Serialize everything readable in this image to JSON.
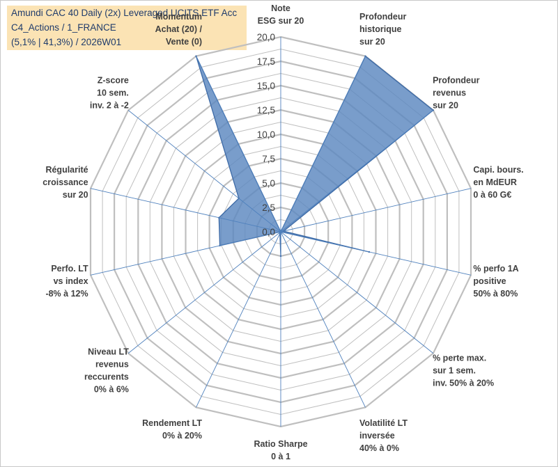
{
  "title": {
    "line1": "Amundi CAC 40 Daily (2x) Leveraged UCITS ETF Acc",
    "line2": "C4_Actions / 1_FRANCE",
    "line3": "(5,1% | 41,3%) / 2026W01"
  },
  "chart_data": {
    "type": "radar",
    "rmax": 20,
    "ticks": [
      0,
      2.5,
      5,
      7.5,
      10,
      12.5,
      15,
      17.5,
      20
    ],
    "tick_labels": [
      "0,0",
      "2,5",
      "5,0",
      "7,5",
      "10,0",
      "12,5",
      "15,0",
      "17,5",
      "20,0"
    ],
    "axes": [
      {
        "label": [
          "Note",
          "ESG sur 20"
        ],
        "value": 0
      },
      {
        "label": [
          "Profondeur",
          "historique",
          "sur 20"
        ],
        "value": 20
      },
      {
        "label": [
          "Profondeur",
          "revenus",
          "sur 20"
        ],
        "value": 20
      },
      {
        "label": [
          "Capi. bours.",
          "en MdEUR",
          "0 à 60 G€"
        ],
        "value": 0.3
      },
      {
        "label": [
          "% perfo 1A",
          "positive",
          "50% à 80%"
        ],
        "value": 9.3
      },
      {
        "label": [
          "% perte max.",
          "sur 1 sem.",
          "inv. 50% à 20%"
        ],
        "value": 0
      },
      {
        "label": [
          "Volatilité LT",
          "inversée",
          "40% à 0%"
        ],
        "value": 0
      },
      {
        "label": [
          "Ratio Sharpe",
          "0 à 1"
        ],
        "value": 2.5
      },
      {
        "label": [
          "Rendement LT",
          "0% à 20%"
        ],
        "value": 0.2
      },
      {
        "label": [
          "Niveau LT",
          "revenus",
          "reccurents",
          "0% à 6%"
        ],
        "value": 0
      },
      {
        "label": [
          "Perfo. LT",
          "vs index",
          "-8% à 12%"
        ],
        "value": 6.4
      },
      {
        "label": [
          "Régularité",
          "croissance",
          "sur 20"
        ],
        "value": 6.5
      },
      {
        "label": [
          "Z-score",
          "10 sem.",
          "inv. 2 à -2"
        ],
        "value": 5.5
      },
      {
        "label": [
          "Momentum",
          "Achat (20) /",
          "Vente (0)"
        ],
        "value": 20
      }
    ],
    "series": [
      {
        "name": "Score"
      }
    ],
    "colors": {
      "fill": "#5b87bf",
      "stroke": "#3d6aa6",
      "grid": "#bfbfbf",
      "spoke": "#4f81bd"
    }
  }
}
